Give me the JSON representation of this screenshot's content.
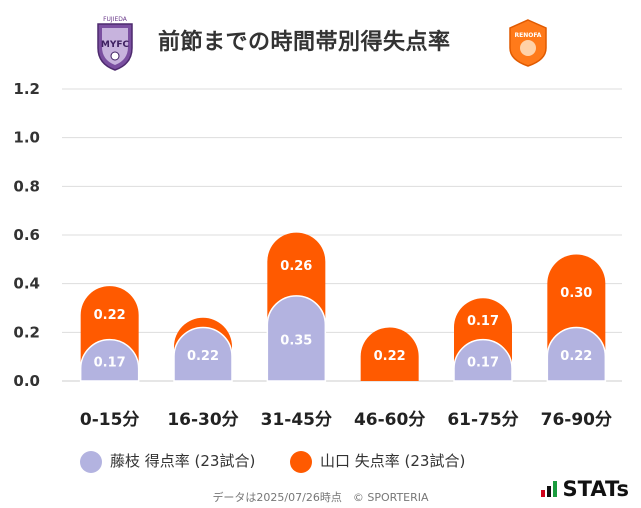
{
  "title": "前節までの時間帯別得失点率",
  "colors": {
    "fujieda": "#b3b3e0",
    "yamaguchi": "#ff5a00",
    "grid": "#dddddd"
  },
  "chart_data": {
    "type": "bar",
    "categories": [
      "0-15分",
      "16-30分",
      "31-45分",
      "46-60分",
      "61-75分",
      "76-90分"
    ],
    "series": [
      {
        "name": "藤枝 得点率 (23試合)",
        "values": [
          0.17,
          0.22,
          0.35,
          0.0,
          0.17,
          0.22
        ]
      },
      {
        "name": "山口 失点率 (23試合)",
        "values": [
          0.22,
          0.04,
          0.26,
          0.22,
          0.17,
          0.3
        ]
      }
    ],
    "data_labels": [
      [
        "0.17",
        "0.22",
        "0.35",
        "",
        "0.17",
        "0.22"
      ],
      [
        "0.22",
        "",
        "0.26",
        "0.22",
        "0.17",
        "0.30"
      ]
    ],
    "yticks": [
      "0.0",
      "0.2",
      "0.4",
      "0.6",
      "0.8",
      "1.0",
      "1.2"
    ],
    "ylim": [
      0,
      1.2
    ],
    "stacked": true,
    "grid": true,
    "legend_position": "bottom"
  },
  "legend": {
    "fujieda": "藤枝 得点率 (23試合)",
    "yamaguchi": "山口 失点率 (23試合)"
  },
  "footer": "データは2025/07/26時点　© SPORTERIA",
  "brand": "STATs",
  "logos": {
    "left_text": "FUJIEDA",
    "right_text": "RENOFA"
  }
}
